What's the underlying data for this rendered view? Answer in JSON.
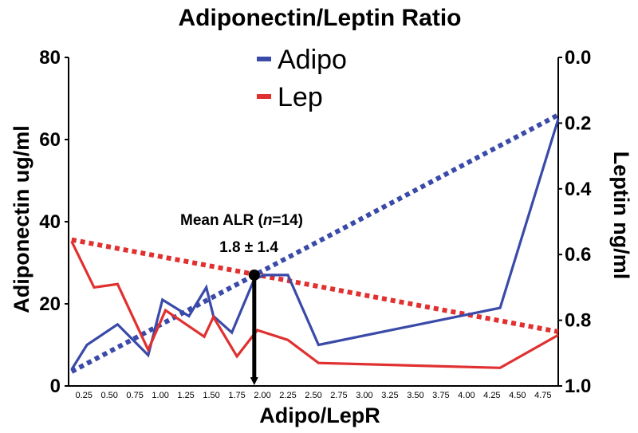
{
  "chart_data": {
    "type": "line",
    "title": "Adiponectin/Leptin Ratio",
    "xlabel": "Adipo/LepR",
    "ylabel_left": "Adiponectin ug/ml",
    "ylabel_right": "Leptin ng/ml",
    "xlim": [
      0.1,
      4.9
    ],
    "ylim_left": [
      0,
      80
    ],
    "ylim_right": [
      1.0,
      0.0
    ],
    "right_axis_inverted": true,
    "x_ticks": [
      "0.25",
      "0.50",
      "0.75",
      "1.00",
      "1.25",
      "1.50",
      "1.75",
      "2.00",
      "2.25",
      "2.50",
      "2.75",
      "3.00",
      "3.25",
      "3.50",
      "3.75",
      "4.00",
      "4.25",
      "4.50",
      "4.75"
    ],
    "y_left_ticks": [
      "0",
      "20",
      "40",
      "60",
      "80"
    ],
    "y_right_ticks": [
      "0.0",
      "0.2",
      "0.4",
      "0.6",
      "0.8",
      "1.0"
    ],
    "legend_position": "top-center",
    "grid": false,
    "series": [
      {
        "name": "Adipo",
        "axis": "left",
        "color": "#3a4aa8",
        "x": [
          0.13,
          0.28,
          0.58,
          0.88,
          1.02,
          1.28,
          1.45,
          1.52,
          1.7,
          1.92,
          2.02,
          2.25,
          2.55,
          4.33,
          4.9
        ],
        "y": [
          4,
          10,
          15,
          7.5,
          21,
          17,
          24,
          17,
          13,
          26,
          27,
          27,
          10,
          19,
          65
        ]
      },
      {
        "name": "Lep",
        "axis": "right",
        "color": "#e03030",
        "x": [
          0.13,
          0.35,
          0.58,
          0.88,
          1.05,
          1.43,
          1.52,
          1.75,
          1.95,
          2.25,
          2.55,
          4.33,
          4.9
        ],
        "y": [
          0.56,
          0.7,
          0.69,
          0.89,
          0.77,
          0.85,
          0.79,
          0.91,
          0.83,
          0.86,
          0.93,
          0.945,
          0.845
        ]
      }
    ],
    "trendlines": [
      {
        "series": "Adipo",
        "axis": "left",
        "style": "dotted",
        "x": [
          0.13,
          4.9
        ],
        "y": [
          3.5,
          66
        ]
      },
      {
        "series": "Lep",
        "axis": "right",
        "style": "dotted",
        "x": [
          0.13,
          4.9
        ],
        "y": [
          0.555,
          0.835
        ]
      }
    ],
    "annotation": {
      "label_mean": "Mean ALR (",
      "label_n": "n",
      "label_count": "=14)",
      "value": "1.8 ± 1.4",
      "x": 1.92,
      "y_left": 27
    }
  }
}
